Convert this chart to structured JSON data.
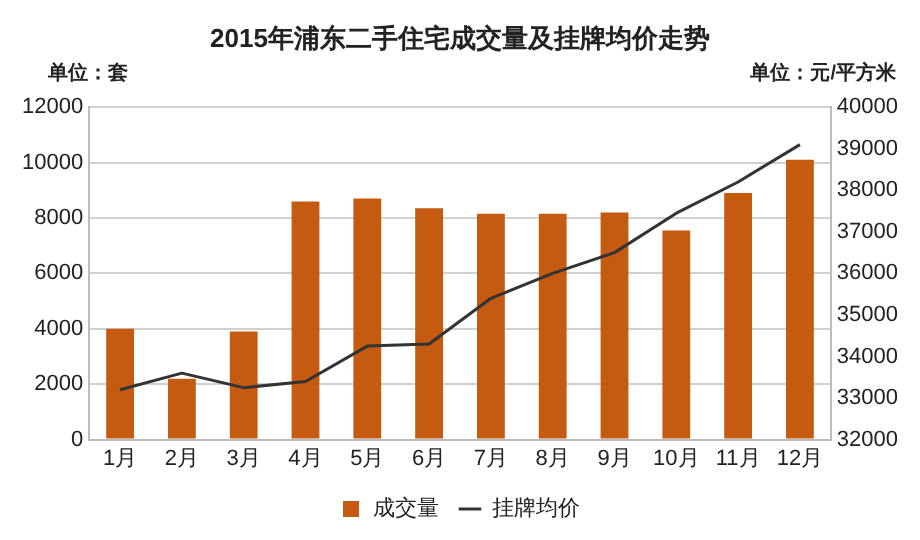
{
  "chart_data": {
    "type": "bar",
    "title": "2015年浦东二手住宅成交量及挂牌均价走势",
    "ylabel": "单位：套",
    "y2label": "单位：元/平方米",
    "categories": [
      "1月",
      "2月",
      "3月",
      "4月",
      "5月",
      "6月",
      "7月",
      "8月",
      "9月",
      "10月",
      "11月",
      "12月"
    ],
    "series": [
      {
        "name": "成交量",
        "color": "#c55a11",
        "values": [
          4000,
          2200,
          3900,
          8600,
          8700,
          8350,
          8150,
          8150,
          8200,
          7550,
          8900,
          10100
        ]
      },
      {
        "name": "挂牌均价",
        "type": "line",
        "axis": "y2",
        "color": "#333333",
        "values": [
          33200,
          33600,
          33250,
          33400,
          34250,
          34300,
          35400,
          36000,
          36500,
          37450,
          38200,
          39100
        ]
      }
    ],
    "ylim": [
      0,
      12000
    ],
    "yticks": [
      0,
      2000,
      4000,
      6000,
      8000,
      10000,
      12000
    ],
    "y2lim": [
      32000,
      40000
    ],
    "y2ticks": [
      32000,
      33000,
      34000,
      35000,
      36000,
      37000,
      38000,
      39000,
      40000
    ],
    "grid": "y",
    "legend": "bottom",
    "marker": "none",
    "line_style": "solid"
  }
}
